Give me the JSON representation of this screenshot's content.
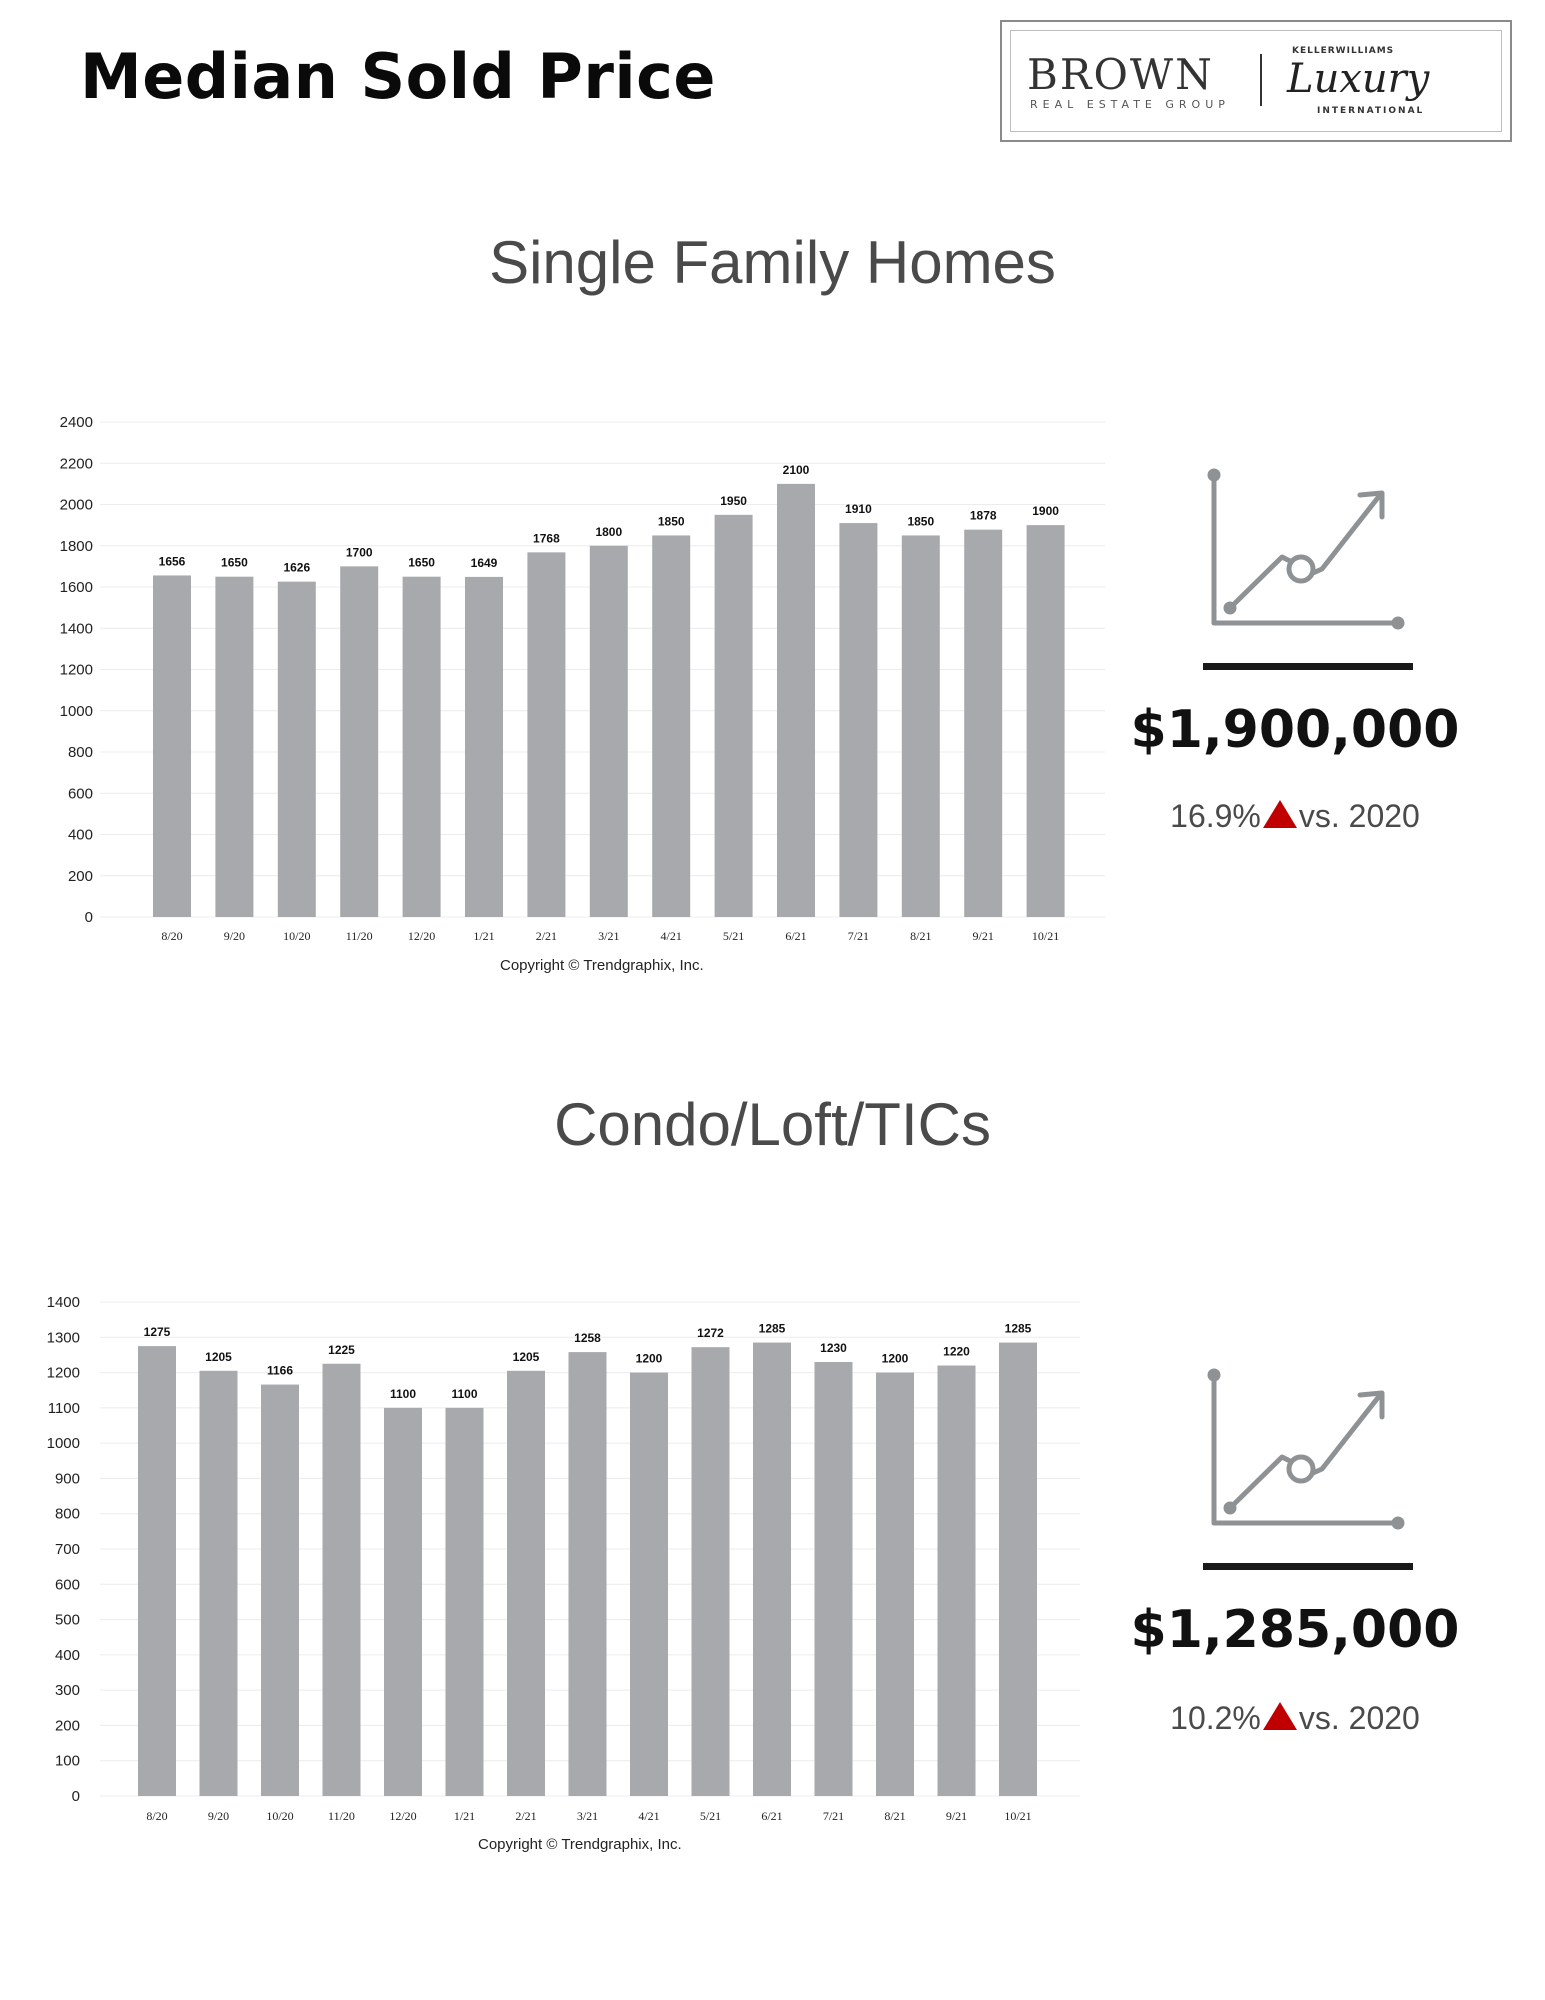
{
  "page_title": "Median Sold Price",
  "logo": {
    "brand": "BROWN",
    "sub": "REAL ESTATE GROUP",
    "kw": "KELLERWILLIAMS",
    "luxury": "Luxury",
    "intl": "INTERNATIONAL"
  },
  "colors": {
    "bar": "#a7a9ac",
    "accent": "#c00000",
    "icon": "#8f9294"
  },
  "sections": [
    {
      "title": "Single Family Homes",
      "copyright": "Copyright © Trendgraphix, Inc.",
      "stat": {
        "value": "$1,900,000",
        "percent": "16.9%",
        "suffix": "vs. 2020",
        "direction": "up"
      },
      "icon": "chart-up-icon"
    },
    {
      "title": "Condo/Loft/TICs",
      "copyright": "Copyright © Trendgraphix, Inc.",
      "stat": {
        "value": "$1,285,000",
        "percent": "10.2%",
        "suffix": "vs. 2020",
        "direction": "up"
      },
      "icon": "chart-up-icon"
    }
  ],
  "chart_data": [
    {
      "type": "bar",
      "title": "Single Family Homes",
      "categories": [
        "8/20",
        "9/20",
        "10/20",
        "11/20",
        "12/20",
        "1/21",
        "2/21",
        "3/21",
        "4/21",
        "5/21",
        "6/21",
        "7/21",
        "8/21",
        "9/21",
        "10/21"
      ],
      "values": [
        1656,
        1650,
        1626,
        1700,
        1650,
        1649,
        1768,
        1800,
        1850,
        1950,
        2100,
        1910,
        1850,
        1878,
        1900
      ],
      "yticks": [
        0,
        200,
        400,
        600,
        800,
        1000,
        1200,
        1400,
        1600,
        1800,
        2000,
        2200,
        2400
      ],
      "ylim": [
        0,
        2400
      ],
      "grid": true,
      "data_labels": true
    },
    {
      "type": "bar",
      "title": "Condo/Loft/TICs",
      "categories": [
        "8/20",
        "9/20",
        "10/20",
        "11/20",
        "12/20",
        "1/21",
        "2/21",
        "3/21",
        "4/21",
        "5/21",
        "6/21",
        "7/21",
        "8/21",
        "9/21",
        "10/21"
      ],
      "values": [
        1275,
        1205,
        1166,
        1225,
        1100,
        1100,
        1205,
        1258,
        1200,
        1272,
        1285,
        1230,
        1200,
        1220,
        1285
      ],
      "yticks": [
        0,
        100,
        200,
        300,
        400,
        500,
        600,
        700,
        800,
        900,
        1000,
        1100,
        1200,
        1300,
        1400
      ],
      "ylim": [
        0,
        1400
      ],
      "grid": true,
      "data_labels": true
    }
  ]
}
